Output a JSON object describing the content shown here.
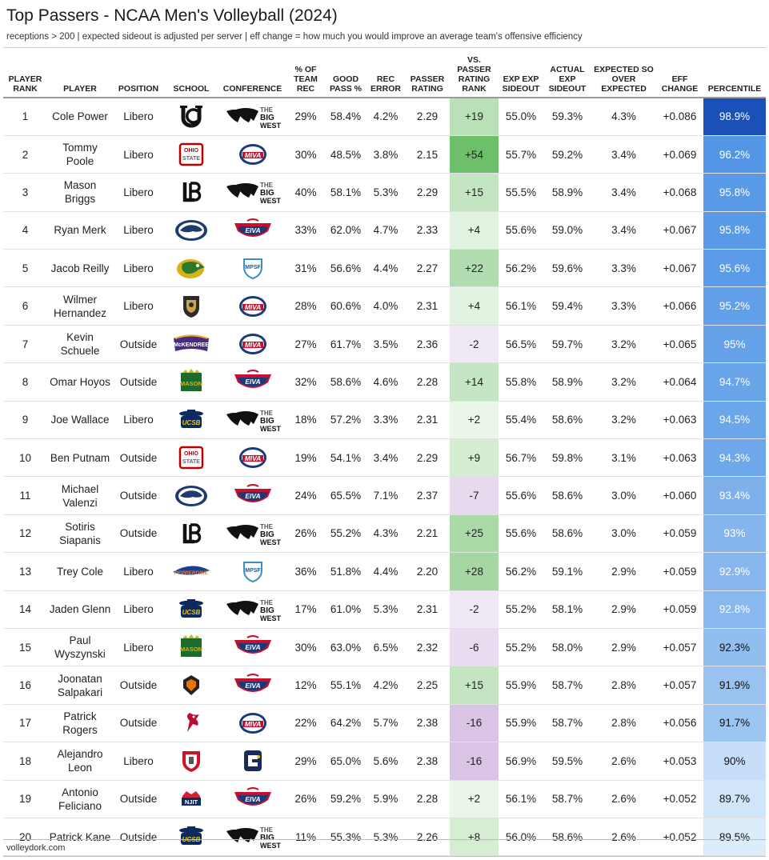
{
  "title": "Top Passers - NCAA Men's Volleyball (2024)",
  "subtitle": "receptions > 200 | expected sideout is adjusted per server | eff change = how much you would improve an average team's offensive efficiency",
  "footer": "volleydork.com",
  "columns": [
    "PLAYER RANK",
    "PLAYER",
    "POSITION",
    "SCHOOL",
    "CONFERENCE",
    "% OF TEAM REC",
    "GOOD PASS %",
    "REC ERROR",
    "PASSER RATING",
    "VS. PASSER RATING RANK",
    "EXP EXP SIDEOUT",
    "ACTUAL EXP SIDEOUT",
    "EXPECTED SO OVER EXPECTED",
    "EFF CHANGE",
    "PERCENTILE"
  ],
  "rows": [
    {
      "rank": "1",
      "player": "Cole Power",
      "position": "Libero",
      "school": "ucirvine-logo",
      "conference": "Big West",
      "team_rec": "29%",
      "good_pass": "58.4%",
      "rec_error": "4.2%",
      "passer_rating": "2.29",
      "vs_rank": "+19",
      "vs_rank_value": 19,
      "exp_exp": "55.0%",
      "actual_exp": "59.3%",
      "so_over": "4.3%",
      "eff_change": "+0.086",
      "percentile": "98.9%",
      "percentile_value": 98.9
    },
    {
      "rank": "2",
      "player": "Tommy Poole",
      "position": "Libero",
      "school": "ohio-state-logo",
      "conference": "MIVA",
      "team_rec": "30%",
      "good_pass": "48.5%",
      "rec_error": "3.8%",
      "passer_rating": "2.15",
      "vs_rank": "+54",
      "vs_rank_value": 54,
      "exp_exp": "55.7%",
      "actual_exp": "59.2%",
      "so_over": "3.4%",
      "eff_change": "+0.069",
      "percentile": "96.2%",
      "percentile_value": 96.2
    },
    {
      "rank": "3",
      "player": "Mason Briggs",
      "position": "Libero",
      "school": "long-beach-logo",
      "conference": "Big West",
      "team_rec": "40%",
      "good_pass": "58.1%",
      "rec_error": "5.3%",
      "passer_rating": "2.29",
      "vs_rank": "+15",
      "vs_rank_value": 15,
      "exp_exp": "55.5%",
      "actual_exp": "58.9%",
      "so_over": "3.4%",
      "eff_change": "+0.068",
      "percentile": "95.8%",
      "percentile_value": 95.8
    },
    {
      "rank": "4",
      "player": "Ryan Merk",
      "position": "Libero",
      "school": "penn-state-logo",
      "conference": "EIVA",
      "team_rec": "33%",
      "good_pass": "62.0%",
      "rec_error": "4.7%",
      "passer_rating": "2.33",
      "vs_rank": "+4",
      "vs_rank_value": 4,
      "exp_exp": "55.6%",
      "actual_exp": "59.0%",
      "so_over": "3.4%",
      "eff_change": "+0.067",
      "percentile": "95.8%",
      "percentile_value": 95.8
    },
    {
      "rank": "5",
      "player": "Jacob Reilly",
      "position": "Libero",
      "school": "hawaii-logo",
      "conference": "MPSF",
      "team_rec": "31%",
      "good_pass": "56.6%",
      "rec_error": "4.4%",
      "passer_rating": "2.27",
      "vs_rank": "+22",
      "vs_rank_value": 22,
      "exp_exp": "56.2%",
      "actual_exp": "59.6%",
      "so_over": "3.3%",
      "eff_change": "+0.067",
      "percentile": "95.6%",
      "percentile_value": 95.6
    },
    {
      "rank": "6",
      "player": "Wilmer Hernandez",
      "position": "Libero",
      "school": "purdue-fw-logo",
      "conference": "MIVA",
      "team_rec": "28%",
      "good_pass": "60.6%",
      "rec_error": "4.0%",
      "passer_rating": "2.31",
      "vs_rank": "+4",
      "vs_rank_value": 4,
      "exp_exp": "56.1%",
      "actual_exp": "59.4%",
      "so_over": "3.3%",
      "eff_change": "+0.066",
      "percentile": "95.2%",
      "percentile_value": 95.2
    },
    {
      "rank": "7",
      "player": "Kevin Schuele",
      "position": "Outside",
      "school": "mckendree-logo",
      "conference": "MIVA",
      "team_rec": "27%",
      "good_pass": "61.7%",
      "rec_error": "3.5%",
      "passer_rating": "2.36",
      "vs_rank": "-2",
      "vs_rank_value": -2,
      "exp_exp": "56.5%",
      "actual_exp": "59.7%",
      "so_over": "3.2%",
      "eff_change": "+0.065",
      "percentile": "95%",
      "percentile_value": 95.0
    },
    {
      "rank": "8",
      "player": "Omar Hoyos",
      "position": "Outside",
      "school": "george-mason-logo",
      "conference": "EIVA",
      "team_rec": "32%",
      "good_pass": "58.6%",
      "rec_error": "4.6%",
      "passer_rating": "2.28",
      "vs_rank": "+14",
      "vs_rank_value": 14,
      "exp_exp": "55.8%",
      "actual_exp": "58.9%",
      "so_over": "3.2%",
      "eff_change": "+0.064",
      "percentile": "94.7%",
      "percentile_value": 94.7
    },
    {
      "rank": "9",
      "player": "Joe Wallace",
      "position": "Libero",
      "school": "ucsb-logo",
      "conference": "Big West",
      "team_rec": "18%",
      "good_pass": "57.2%",
      "rec_error": "3.3%",
      "passer_rating": "2.31",
      "vs_rank": "+2",
      "vs_rank_value": 2,
      "exp_exp": "55.4%",
      "actual_exp": "58.6%",
      "so_over": "3.2%",
      "eff_change": "+0.063",
      "percentile": "94.5%",
      "percentile_value": 94.5
    },
    {
      "rank": "10",
      "player": "Ben Putnam",
      "position": "Outside",
      "school": "ohio-state-logo",
      "conference": "MIVA",
      "team_rec": "19%",
      "good_pass": "54.1%",
      "rec_error": "3.4%",
      "passer_rating": "2.29",
      "vs_rank": "+9",
      "vs_rank_value": 9,
      "exp_exp": "56.7%",
      "actual_exp": "59.8%",
      "so_over": "3.1%",
      "eff_change": "+0.063",
      "percentile": "94.3%",
      "percentile_value": 94.3
    },
    {
      "rank": "11",
      "player": "Michael Valenzi",
      "position": "Outside",
      "school": "penn-state-logo",
      "conference": "EIVA",
      "team_rec": "24%",
      "good_pass": "65.5%",
      "rec_error": "7.1%",
      "passer_rating": "2.37",
      "vs_rank": "-7",
      "vs_rank_value": -7,
      "exp_exp": "55.6%",
      "actual_exp": "58.6%",
      "so_over": "3.0%",
      "eff_change": "+0.060",
      "percentile": "93.4%",
      "percentile_value": 93.4
    },
    {
      "rank": "12",
      "player": "Sotiris Siapanis",
      "position": "Outside",
      "school": "long-beach-logo",
      "conference": "Big West",
      "team_rec": "26%",
      "good_pass": "55.2%",
      "rec_error": "4.3%",
      "passer_rating": "2.21",
      "vs_rank": "+25",
      "vs_rank_value": 25,
      "exp_exp": "55.6%",
      "actual_exp": "58.6%",
      "so_over": "3.0%",
      "eff_change": "+0.059",
      "percentile": "93%",
      "percentile_value": 93.0
    },
    {
      "rank": "13",
      "player": "Trey Cole",
      "position": "Libero",
      "school": "pepperdine-logo",
      "conference": "MPSF",
      "team_rec": "36%",
      "good_pass": "51.8%",
      "rec_error": "4.4%",
      "passer_rating": "2.20",
      "vs_rank": "+28",
      "vs_rank_value": 28,
      "exp_exp": "56.2%",
      "actual_exp": "59.1%",
      "so_over": "2.9%",
      "eff_change": "+0.059",
      "percentile": "92.9%",
      "percentile_value": 92.9
    },
    {
      "rank": "14",
      "player": "Jaden Glenn",
      "position": "Libero",
      "school": "ucsb-logo",
      "conference": "Big West",
      "team_rec": "17%",
      "good_pass": "61.0%",
      "rec_error": "5.3%",
      "passer_rating": "2.31",
      "vs_rank": "-2",
      "vs_rank_value": -2,
      "exp_exp": "55.2%",
      "actual_exp": "58.1%",
      "so_over": "2.9%",
      "eff_change": "+0.059",
      "percentile": "92.8%",
      "percentile_value": 92.8
    },
    {
      "rank": "15",
      "player": "Paul Wyszynski",
      "position": "Libero",
      "school": "george-mason-logo",
      "conference": "EIVA",
      "team_rec": "30%",
      "good_pass": "63.0%",
      "rec_error": "6.5%",
      "passer_rating": "2.32",
      "vs_rank": "-6",
      "vs_rank_value": -6,
      "exp_exp": "55.2%",
      "actual_exp": "58.0%",
      "so_over": "2.9%",
      "eff_change": "+0.057",
      "percentile": "92.3%",
      "percentile_value": 92.3
    },
    {
      "rank": "16",
      "player": "Joonatan Salpakari",
      "position": "Outside",
      "school": "princeton-logo",
      "conference": "EIVA",
      "team_rec": "12%",
      "good_pass": "55.1%",
      "rec_error": "4.2%",
      "passer_rating": "2.25",
      "vs_rank": "+15",
      "vs_rank_value": 15,
      "exp_exp": "55.9%",
      "actual_exp": "58.7%",
      "so_over": "2.8%",
      "eff_change": "+0.057",
      "percentile": "91.9%",
      "percentile_value": 91.9
    },
    {
      "rank": "17",
      "player": "Patrick Rogers",
      "position": "Outside",
      "school": "ball-state-logo",
      "conference": "MIVA",
      "team_rec": "22%",
      "good_pass": "64.2%",
      "rec_error": "5.7%",
      "passer_rating": "2.38",
      "vs_rank": "-16",
      "vs_rank_value": -16,
      "exp_exp": "55.9%",
      "actual_exp": "58.7%",
      "so_over": "2.8%",
      "eff_change": "+0.056",
      "percentile": "91.7%",
      "percentile_value": 91.7
    },
    {
      "rank": "18",
      "player": "Alejandro Leon",
      "position": "Libero",
      "school": "st-francis-logo",
      "conference": "Conference Carolinas",
      "team_rec": "29%",
      "good_pass": "65.0%",
      "rec_error": "5.6%",
      "passer_rating": "2.38",
      "vs_rank": "-16",
      "vs_rank_value": -16,
      "exp_exp": "56.9%",
      "actual_exp": "59.5%",
      "so_over": "2.6%",
      "eff_change": "+0.053",
      "percentile": "90%",
      "percentile_value": 90.0
    },
    {
      "rank": "19",
      "player": "Antonio Feliciano",
      "position": "Outside",
      "school": "njit-logo",
      "conference": "EIVA",
      "team_rec": "26%",
      "good_pass": "59.2%",
      "rec_error": "5.9%",
      "passer_rating": "2.28",
      "vs_rank": "+2",
      "vs_rank_value": 2,
      "exp_exp": "56.1%",
      "actual_exp": "58.7%",
      "so_over": "2.6%",
      "eff_change": "+0.052",
      "percentile": "89.7%",
      "percentile_value": 89.7
    },
    {
      "rank": "20",
      "player": "Patrick Kane",
      "position": "Outside",
      "school": "ucsb-logo",
      "conference": "Big West",
      "team_rec": "11%",
      "good_pass": "55.3%",
      "rec_error": "5.3%",
      "passer_rating": "2.26",
      "vs_rank": "+8",
      "vs_rank_value": 8,
      "exp_exp": "56.0%",
      "actual_exp": "58.6%",
      "so_over": "2.6%",
      "eff_change": "+0.052",
      "percentile": "89.5%",
      "percentile_value": 89.5
    }
  ],
  "logo_text": {
    "big_west": [
      "THE",
      "BIG",
      "WEST"
    ],
    "miva": "MIVA",
    "eiva": "EIVA",
    "mpsf": "MPSF",
    "ohio_state": "OHIO STATE",
    "mckendree": "McKENDREE",
    "mason": "MASON",
    "ucsb": "UCSB",
    "pepperdine": "PEPPERDINE",
    "njit": "NJIT"
  },
  "colors": {
    "percentile_high": "#1a50b8",
    "percentile_low": "#dcecfb",
    "vs_positive": "#6dbf6a",
    "vs_negative": "#d9c4e6"
  }
}
